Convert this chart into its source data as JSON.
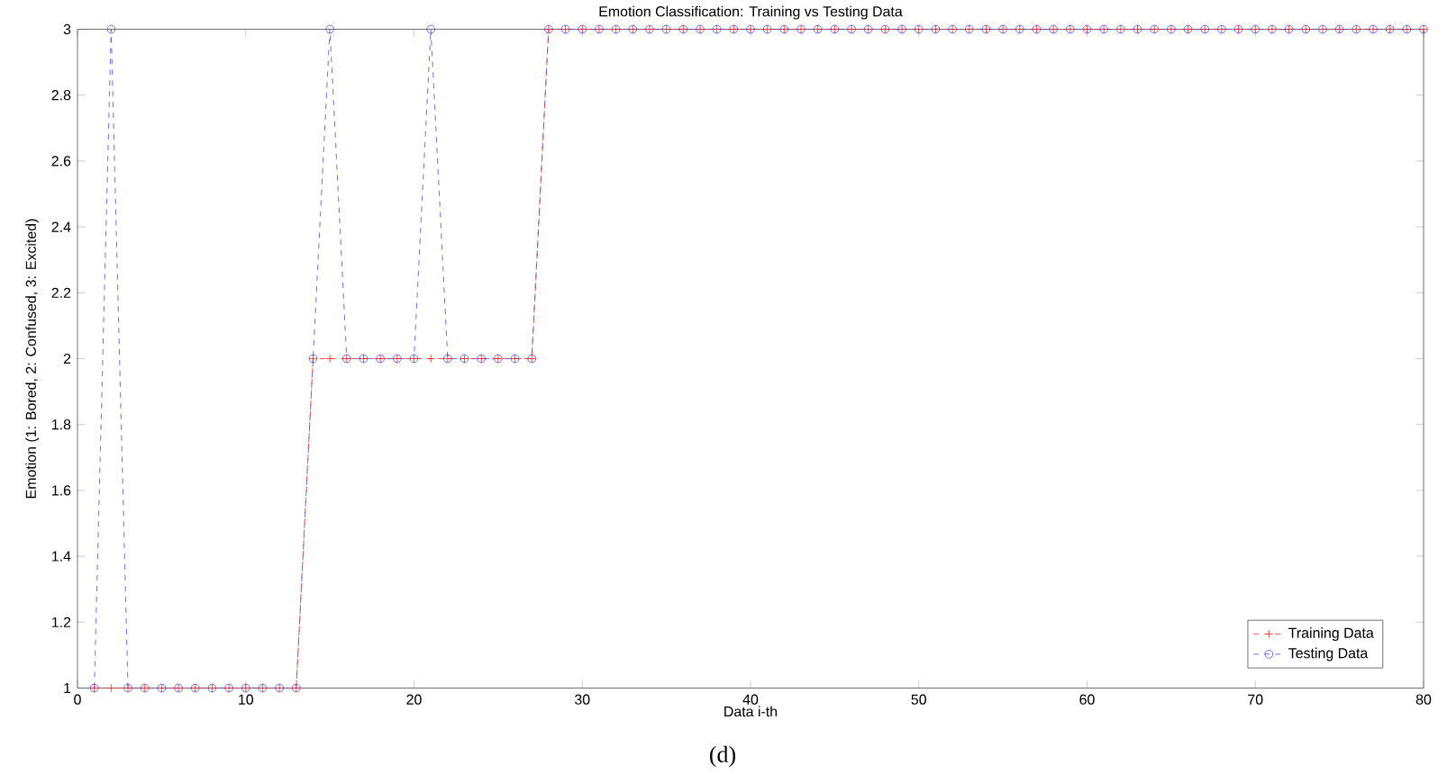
{
  "chart_data": {
    "type": "line",
    "title": "Emotion Classification: Training vs Testing Data",
    "xlabel": "Data i-th",
    "ylabel": "Emotion (1: Bored, 2: Confused, 3: Excited)",
    "x": [
      1,
      2,
      3,
      4,
      5,
      6,
      7,
      8,
      9,
      10,
      11,
      12,
      13,
      14,
      15,
      16,
      17,
      18,
      19,
      20,
      21,
      22,
      23,
      24,
      25,
      26,
      27,
      28,
      29,
      30,
      31,
      32,
      33,
      34,
      35,
      36,
      37,
      38,
      39,
      40,
      41,
      42,
      43,
      44,
      45,
      46,
      47,
      48,
      49,
      50,
      51,
      52,
      53,
      54,
      55,
      56,
      57,
      58,
      59,
      60,
      61,
      62,
      63,
      64,
      65,
      66,
      67,
      68,
      69,
      70,
      71,
      72,
      73,
      74,
      75,
      76,
      77,
      78,
      79,
      80
    ],
    "series": [
      {
        "name": "Training Data",
        "color": "#ff2020",
        "marker": "cross",
        "line_style": "dashed",
        "values": [
          1,
          1,
          1,
          1,
          1,
          1,
          1,
          1,
          1,
          1,
          1,
          1,
          1,
          2,
          2,
          2,
          2,
          2,
          2,
          2,
          2,
          2,
          2,
          2,
          2,
          2,
          2,
          3,
          3,
          3,
          3,
          3,
          3,
          3,
          3,
          3,
          3,
          3,
          3,
          3,
          3,
          3,
          3,
          3,
          3,
          3,
          3,
          3,
          3,
          3,
          3,
          3,
          3,
          3,
          3,
          3,
          3,
          3,
          3,
          3,
          3,
          3,
          3,
          3,
          3,
          3,
          3,
          3,
          3,
          3,
          3,
          3,
          3,
          3,
          3,
          3,
          3,
          3,
          3,
          3
        ]
      },
      {
        "name": "Testing Data",
        "color": "#4a4ae0",
        "marker": "circle",
        "line_style": "dashed",
        "values": [
          1,
          3,
          1,
          1,
          1,
          1,
          1,
          1,
          1,
          1,
          1,
          1,
          1,
          2,
          3,
          2,
          2,
          2,
          2,
          2,
          3,
          2,
          2,
          2,
          2,
          2,
          2,
          3,
          3,
          3,
          3,
          3,
          3,
          3,
          3,
          3,
          3,
          3,
          3,
          3,
          3,
          3,
          3,
          3,
          3,
          3,
          3,
          3,
          3,
          3,
          3,
          3,
          3,
          3,
          3,
          3,
          3,
          3,
          3,
          3,
          3,
          3,
          3,
          3,
          3,
          3,
          3,
          3,
          3,
          3,
          3,
          3,
          3,
          3,
          3,
          3,
          3,
          3,
          3,
          3
        ]
      }
    ],
    "xlim": [
      0,
      80
    ],
    "ylim": [
      1,
      3
    ],
    "xticks": [
      0,
      10,
      20,
      30,
      40,
      50,
      60,
      70,
      80
    ],
    "yticks": [
      1,
      1.2,
      1.4,
      1.6,
      1.8,
      2,
      2.2,
      2.4,
      2.6,
      2.8,
      3
    ],
    "legend": "bottom right",
    "annotations": [
      "(d)"
    ]
  }
}
